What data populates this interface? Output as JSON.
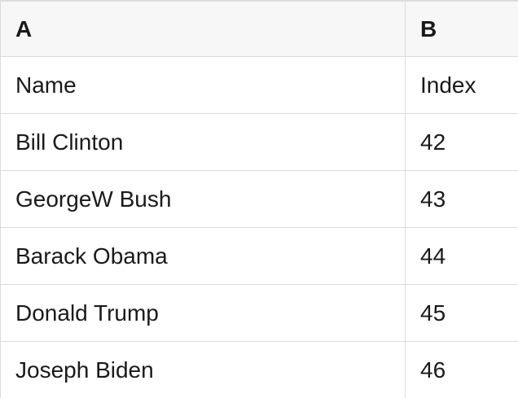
{
  "table": {
    "column_headers": [
      "A",
      "B"
    ],
    "rows": [
      [
        "Name",
        "Index"
      ],
      [
        "Bill Clinton",
        "42"
      ],
      [
        "GeorgeW Bush",
        "43"
      ],
      [
        "Barack Obama",
        "44"
      ],
      [
        "Donald Trump",
        "45"
      ],
      [
        "Joseph Biden",
        "46"
      ]
    ]
  },
  "colors": {
    "header_background": "#f7f7f7",
    "border": "#dcdcdc",
    "text": "#1a1a1a",
    "background": "#ffffff"
  }
}
